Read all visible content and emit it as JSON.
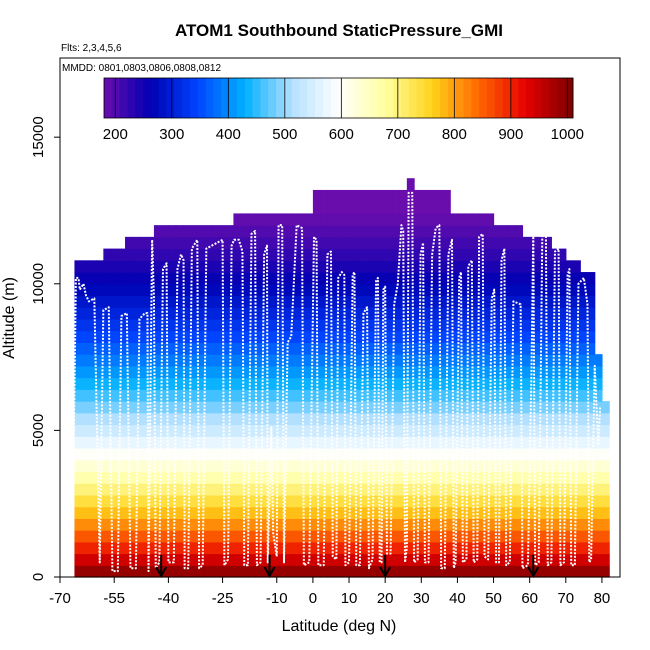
{
  "chart_data": {
    "type": "heatmap",
    "title": "ATOM1 Southbound StaticPressure_GMI",
    "flights_label": "Flts: 2,3,4,5,6",
    "dates_label": "MMDD: 0801,0803,0806,0808,0812",
    "xlabel": "Latitude (deg N)",
    "ylabel": "Altitude (m)",
    "xlim": [
      -70,
      85
    ],
    "ylim": [
      0,
      17700
    ],
    "x_ticks": [
      -70,
      -55,
      -40,
      -25,
      -10,
      0,
      10,
      20,
      30,
      40,
      50,
      60,
      70,
      80
    ],
    "y_ticks": [
      0,
      5000,
      10000,
      15000
    ],
    "colorbar": {
      "min": 180,
      "max": 1010,
      "ticks": [
        200,
        300,
        400,
        500,
        600,
        700,
        800,
        900,
        1000
      ],
      "colors": [
        "#6a0dad",
        "#0000b3",
        "#0044ff",
        "#00b0ff",
        "#b3e0ff",
        "#ffffff",
        "#ffffa0",
        "#ffd21a",
        "#ff6600",
        "#e60000",
        "#7a0000"
      ]
    },
    "bin_width_deg": 2,
    "bin_height_m": 400,
    "column_tops": [
      [
        -66,
        10600
      ],
      [
        -64,
        10600
      ],
      [
        -62,
        10600
      ],
      [
        -60,
        10600
      ],
      [
        -58,
        11000
      ],
      [
        -56,
        11000
      ],
      [
        -54,
        11000
      ],
      [
        -52,
        11400
      ],
      [
        -50,
        11400
      ],
      [
        -48,
        11400
      ],
      [
        -46,
        11400
      ],
      [
        -44,
        12000
      ],
      [
        -42,
        12000
      ],
      [
        -40,
        12000
      ],
      [
        -38,
        12000
      ],
      [
        -36,
        12000
      ],
      [
        -34,
        12000
      ],
      [
        -32,
        12000
      ],
      [
        -30,
        12000
      ],
      [
        -28,
        12000
      ],
      [
        -26,
        12000
      ],
      [
        -24,
        12000
      ],
      [
        -22,
        12400
      ],
      [
        -20,
        12400
      ],
      [
        -18,
        12400
      ],
      [
        -16,
        12400
      ],
      [
        -14,
        12400
      ],
      [
        -12,
        12400
      ],
      [
        -10,
        12400
      ],
      [
        -8,
        12400
      ],
      [
        -6,
        12400
      ],
      [
        -4,
        12400
      ],
      [
        -2,
        12400
      ],
      [
        0,
        13000
      ],
      [
        2,
        13000
      ],
      [
        4,
        13000
      ],
      [
        6,
        13000
      ],
      [
        8,
        13000
      ],
      [
        10,
        13000
      ],
      [
        12,
        13000
      ],
      [
        14,
        13000
      ],
      [
        16,
        13000
      ],
      [
        18,
        13000
      ],
      [
        20,
        13000
      ],
      [
        22,
        13000
      ],
      [
        24,
        13000
      ],
      [
        26,
        13600
      ],
      [
        28,
        13000
      ],
      [
        30,
        13000
      ],
      [
        32,
        13000
      ],
      [
        34,
        13000
      ],
      [
        36,
        13000
      ],
      [
        38,
        12400
      ],
      [
        40,
        12400
      ],
      [
        42,
        12400
      ],
      [
        44,
        12400
      ],
      [
        46,
        12400
      ],
      [
        48,
        12400
      ],
      [
        50,
        12000
      ],
      [
        52,
        12000
      ],
      [
        54,
        12000
      ],
      [
        56,
        12000
      ],
      [
        58,
        11600
      ],
      [
        60,
        11600
      ],
      [
        62,
        11600
      ],
      [
        64,
        11400
      ],
      [
        66,
        11000
      ],
      [
        68,
        11000
      ],
      [
        70,
        10600
      ],
      [
        72,
        10600
      ],
      [
        74,
        10200
      ],
      [
        76,
        10200
      ],
      [
        78,
        7600
      ],
      [
        80,
        6000
      ]
    ],
    "profile": [
      [
        -66.5,
        1500
      ],
      [
        -65.6,
        10200
      ],
      [
        -64.9,
        10200
      ],
      [
        -64.5,
        9800
      ],
      [
        -63.5,
        10000
      ],
      [
        -62.8,
        9600
      ],
      [
        -62,
        9400
      ],
      [
        -60.5,
        9500
      ],
      [
        -59,
        500
      ],
      [
        -58,
        9100
      ],
      [
        -56.5,
        9200
      ],
      [
        -55.5,
        200
      ],
      [
        -54,
        200
      ],
      [
        -53,
        8900
      ],
      [
        -51.5,
        9000
      ],
      [
        -50.5,
        300
      ],
      [
        -49,
        300
      ],
      [
        -48,
        8800
      ],
      [
        -46.5,
        9000
      ],
      [
        -45.8,
        9000
      ],
      [
        -45.5,
        200
      ],
      [
        -44.5,
        11500
      ],
      [
        -44,
        9500
      ],
      [
        -43.5,
        300
      ],
      [
        -42.5,
        500
      ],
      [
        -41.5,
        10500
      ],
      [
        -40.5,
        10700
      ],
      [
        -40,
        500
      ],
      [
        -38.5,
        500
      ],
      [
        -37.5,
        10500
      ],
      [
        -36.5,
        11000
      ],
      [
        -35.8,
        10800
      ],
      [
        -35.5,
        300
      ],
      [
        -34.5,
        300
      ],
      [
        -33.5,
        11200
      ],
      [
        -32,
        11500
      ],
      [
        -31.5,
        300
      ],
      [
        -30.5,
        400
      ],
      [
        -29.5,
        11200
      ],
      [
        -28,
        11300
      ],
      [
        -25,
        11500
      ],
      [
        -24.5,
        400
      ],
      [
        -23.5,
        600
      ],
      [
        -22.5,
        11300
      ],
      [
        -21.8,
        11500
      ],
      [
        -20.5,
        11500
      ],
      [
        -19.5,
        11100
      ],
      [
        -19,
        400
      ],
      [
        -18,
        400
      ],
      [
        -17,
        11700
      ],
      [
        -16,
        11800
      ],
      [
        -15.5,
        400
      ],
      [
        -14.5,
        500
      ],
      [
        -13.5,
        11000
      ],
      [
        -12.7,
        11300
      ],
      [
        -12.5,
        500
      ],
      [
        -11.5,
        5100
      ],
      [
        -11,
        1500
      ],
      [
        -10,
        700
      ],
      [
        -9.5,
        12000
      ],
      [
        -8.5,
        12000
      ],
      [
        -8,
        500
      ],
      [
        -7,
        8000
      ],
      [
        -6,
        8200
      ],
      [
        -4.5,
        12000
      ],
      [
        -3,
        11900
      ],
      [
        -2.5,
        400
      ],
      [
        -1,
        500
      ],
      [
        0.3,
        11600
      ],
      [
        1,
        11500
      ],
      [
        1.5,
        400
      ],
      [
        3,
        400
      ],
      [
        4,
        11000
      ],
      [
        5,
        11100
      ],
      [
        5.5,
        700
      ],
      [
        6.5,
        600
      ],
      [
        7,
        10200
      ],
      [
        8,
        10400
      ],
      [
        8.7,
        10300
      ],
      [
        9,
        400
      ],
      [
        10,
        500
      ],
      [
        11,
        10300
      ],
      [
        11.5,
        10400
      ],
      [
        12,
        400
      ],
      [
        13,
        400
      ],
      [
        14,
        9000
      ],
      [
        15,
        9200
      ],
      [
        15.5,
        300
      ],
      [
        16.5,
        600
      ],
      [
        17.5,
        10100
      ],
      [
        18,
        10200
      ],
      [
        18.5,
        500
      ],
      [
        19,
        500
      ],
      [
        19.5,
        9800
      ],
      [
        20,
        9900
      ],
      [
        20.5,
        800
      ],
      [
        21.5,
        800
      ],
      [
        22.5,
        9300
      ],
      [
        23.5,
        10000
      ],
      [
        24.5,
        12000
      ],
      [
        25,
        11800
      ],
      [
        25.5,
        500
      ],
      [
        26,
        1000
      ],
      [
        26.5,
        13100
      ],
      [
        27.5,
        13100
      ],
      [
        28,
        500
      ],
      [
        29,
        600
      ],
      [
        29.8,
        11000
      ],
      [
        30.5,
        11400
      ],
      [
        31,
        500
      ],
      [
        32,
        500
      ],
      [
        33,
        11000
      ],
      [
        34,
        11900
      ],
      [
        35,
        12000
      ],
      [
        35.5,
        300
      ],
      [
        36.5,
        300
      ],
      [
        37.5,
        11000
      ],
      [
        38.5,
        11500
      ],
      [
        39,
        300
      ],
      [
        39.5,
        500
      ],
      [
        40.5,
        10200
      ],
      [
        41,
        10400
      ],
      [
        41.5,
        500
      ],
      [
        42.5,
        600
      ],
      [
        43,
        10600
      ],
      [
        44,
        10800
      ],
      [
        44.5,
        500
      ],
      [
        45.5,
        600
      ],
      [
        46,
        11600
      ],
      [
        47,
        11700
      ],
      [
        47.5,
        700
      ],
      [
        48.5,
        600
      ],
      [
        49.5,
        9500
      ],
      [
        50.2,
        9800
      ],
      [
        50.7,
        500
      ],
      [
        51.5,
        500
      ],
      [
        52.2,
        10800
      ],
      [
        53,
        11200
      ],
      [
        53.5,
        400
      ],
      [
        54.5,
        500
      ],
      [
        55.5,
        9400
      ],
      [
        57.5,
        9300
      ],
      [
        58,
        300
      ],
      [
        59.5,
        400
      ],
      [
        60.5,
        7000
      ],
      [
        61,
        11800
      ],
      [
        61.5,
        400
      ],
      [
        62.5,
        500
      ],
      [
        63.5,
        11700
      ],
      [
        64.5,
        11600
      ],
      [
        65,
        400
      ],
      [
        66,
        500
      ],
      [
        67,
        11100
      ],
      [
        68,
        11200
      ],
      [
        68.5,
        400
      ],
      [
        69.5,
        500
      ],
      [
        70.5,
        10300
      ],
      [
        71,
        10500
      ],
      [
        71.5,
        400
      ],
      [
        72.5,
        400
      ],
      [
        73.5,
        10000
      ],
      [
        75,
        10200
      ],
      [
        76,
        9300
      ],
      [
        76.5,
        500
      ],
      [
        77,
        600
      ],
      [
        78,
        7200
      ],
      [
        79,
        4500
      ],
      [
        79.5,
        5800
      ]
    ],
    "arrow_latitudes": [
      -42,
      -12,
      20,
      61
    ]
  }
}
